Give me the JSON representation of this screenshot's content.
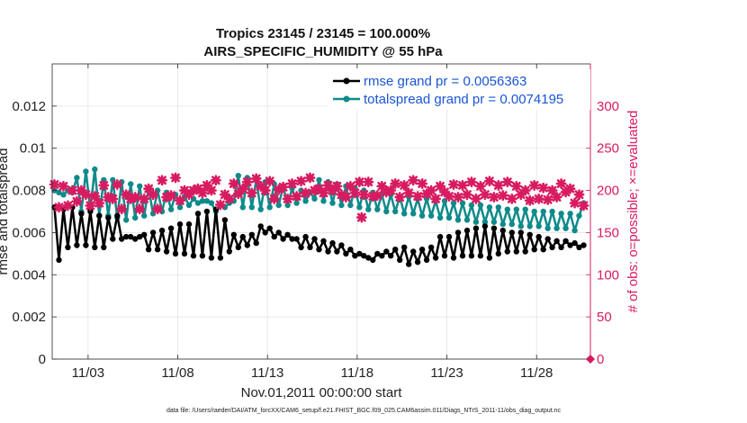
{
  "chart_data": {
    "type": "line",
    "title_line1": "Tropics 23145 / 23145 = 100.000%",
    "title_line2": "AIRS_SPECIFIC_HUMIDITY @ 55 hPa",
    "xlabel": "Nov.01,2011 00:00:00 start",
    "ylabel_left": "rmse and totalspread",
    "ylabel_right": "# of obs: o=possible; ×=evaluated",
    "footnote": "data file: /Users/raeder/DAI/ATM_forcXX/CAM6_setup/f.e21.FHIST_BGC.f09_025.CAM6assim.011/Diags_NTrS_2011-11/obs_diag_output.nc",
    "x_ticks": [
      {
        "value": 3,
        "label": "11/03"
      },
      {
        "value": 8,
        "label": "11/08"
      },
      {
        "value": 13,
        "label": "11/13"
      },
      {
        "value": 18,
        "label": "11/18"
      },
      {
        "value": 23,
        "label": "11/23"
      },
      {
        "value": 28,
        "label": "11/28"
      }
    ],
    "xlim": [
      1,
      31
    ],
    "ylim_left": [
      0,
      0.014
    ],
    "yticks_left": [
      {
        "value": 0,
        "label": "0"
      },
      {
        "value": 0.002,
        "label": "0.002"
      },
      {
        "value": 0.004,
        "label": "0.004"
      },
      {
        "value": 0.006,
        "label": "0.006"
      },
      {
        "value": 0.008,
        "label": "0.008"
      },
      {
        "value": 0.01,
        "label": "0.01"
      },
      {
        "value": 0.012,
        "label": "0.012"
      }
    ],
    "ylim_right": [
      0,
      350
    ],
    "yticks_right": [
      {
        "value": 0,
        "label": "0"
      },
      {
        "value": 50,
        "label": "50"
      },
      {
        "value": 100,
        "label": "100"
      },
      {
        "value": 150,
        "label": "150"
      },
      {
        "value": 200,
        "label": "200"
      },
      {
        "value": 250,
        "label": "250"
      },
      {
        "value": 300,
        "label": "300"
      }
    ],
    "series": [
      {
        "name": "rmse",
        "legend": "rmse grand pr = 0.0056363",
        "color": "#000000",
        "axis": "left",
        "x_start": 1.125,
        "x_step": 0.25,
        "values": [
          0.0072,
          0.0047,
          0.0071,
          0.0053,
          0.0072,
          0.0054,
          0.0069,
          0.0054,
          0.007,
          0.0053,
          0.0068,
          0.0053,
          0.0067,
          0.0057,
          0.0068,
          0.0057,
          0.0058,
          0.0058,
          0.0057,
          0.0058,
          0.0059,
          0.0052,
          0.006,
          0.0052,
          0.0061,
          0.0051,
          0.0062,
          0.005,
          0.0064,
          0.005,
          0.0064,
          0.0049,
          0.0069,
          0.0049,
          0.007,
          0.0048,
          0.0071,
          0.0048,
          0.0066,
          0.0051,
          0.0059,
          0.0053,
          0.0058,
          0.0054,
          0.0059,
          0.0055,
          0.0063,
          0.006,
          0.0062,
          0.0058,
          0.006,
          0.0057,
          0.0059,
          0.0057,
          0.0057,
          0.0053,
          0.0058,
          0.0053,
          0.0057,
          0.0052,
          0.0056,
          0.0051,
          0.0055,
          0.0051,
          0.0054,
          0.005,
          0.0052,
          0.0049,
          0.005,
          0.0049,
          0.0048,
          0.0047,
          0.005,
          0.0049,
          0.0051,
          0.0049,
          0.0052,
          0.0047,
          0.0053,
          0.0045,
          0.0051,
          0.0046,
          0.0052,
          0.0047,
          0.0053,
          0.0048,
          0.0058,
          0.0049,
          0.0058,
          0.0048,
          0.006,
          0.0049,
          0.0061,
          0.0049,
          0.0062,
          0.0049,
          0.0063,
          0.0048,
          0.0062,
          0.005,
          0.0061,
          0.0051,
          0.006,
          0.0051,
          0.006,
          0.0051,
          0.0059,
          0.0052,
          0.0058,
          0.0052,
          0.0057,
          0.0053,
          0.0056,
          0.0053,
          0.0056,
          0.0054,
          0.0055,
          0.0053,
          0.0054
        ]
      },
      {
        "name": "totalspread",
        "legend": "totalspread grand pr = 0.0074195",
        "color": "#0f8a8a",
        "axis": "left",
        "x_start": 1.125,
        "x_step": 0.25,
        "values": [
          0.008,
          0.0079,
          0.0078,
          0.008,
          0.0079,
          0.0086,
          0.007,
          0.0089,
          0.0071,
          0.009,
          0.0068,
          0.0085,
          0.0068,
          0.0085,
          0.0067,
          0.0084,
          0.0066,
          0.0083,
          0.0067,
          0.0082,
          0.0068,
          0.0081,
          0.0069,
          0.008,
          0.007,
          0.0079,
          0.0071,
          0.0078,
          0.0072,
          0.0077,
          0.0073,
          0.0076,
          0.0074,
          0.0075,
          0.0075,
          0.0074,
          0.007,
          0.0073,
          0.0072,
          0.0074,
          0.0075,
          0.0087,
          0.0072,
          0.0086,
          0.0072,
          0.0085,
          0.0071,
          0.0084,
          0.0072,
          0.0083,
          0.0073,
          0.0082,
          0.0073,
          0.0081,
          0.0074,
          0.008,
          0.0075,
          0.0079,
          0.0076,
          0.0085,
          0.0075,
          0.0084,
          0.0074,
          0.0083,
          0.0073,
          0.0082,
          0.0073,
          0.0081,
          0.0072,
          0.008,
          0.0071,
          0.0079,
          0.0071,
          0.0078,
          0.007,
          0.0078,
          0.007,
          0.0077,
          0.0069,
          0.0077,
          0.0069,
          0.0076,
          0.0068,
          0.0076,
          0.0068,
          0.0075,
          0.0067,
          0.0075,
          0.0067,
          0.0074,
          0.0066,
          0.0074,
          0.0066,
          0.0073,
          0.0065,
          0.0073,
          0.0065,
          0.0072,
          0.0065,
          0.0072,
          0.0064,
          0.0071,
          0.0064,
          0.0071,
          0.0063,
          0.0071,
          0.0063,
          0.007,
          0.0063,
          0.007,
          0.0062,
          0.007,
          0.0062,
          0.0069,
          0.0062,
          0.0069,
          0.0061,
          0.0068,
          0.0074
        ]
      },
      {
        "name": "obs possible",
        "color": "#d81b60",
        "axis": "right",
        "marker": "circle",
        "x": [
          31
        ],
        "values": [
          0
        ]
      },
      {
        "name": "obs evaluated",
        "color": "#d81b60",
        "axis": "right",
        "marker": "x",
        "x": [
          1.125,
          1.375,
          1.625,
          1.875,
          2.125,
          2.375,
          2.625,
          2.875,
          3.125,
          3.375,
          3.625,
          3.875,
          4.125,
          4.375,
          4.625,
          4.875,
          5.125,
          5.375,
          5.625,
          5.875,
          6.125,
          6.375,
          6.625,
          6.875,
          7.125,
          7.375,
          7.625,
          7.875,
          8.125,
          8.375,
          8.625,
          8.875,
          9.125,
          9.375,
          9.625,
          9.875,
          10.125,
          10.375,
          10.625,
          10.875,
          11.125,
          11.375,
          11.625,
          11.875,
          12.125,
          12.375,
          12.625,
          12.875,
          13.125,
          13.375,
          13.625,
          13.875,
          14.125,
          14.375,
          14.625,
          14.875,
          15.125,
          15.375,
          15.625,
          15.875,
          16.125,
          16.375,
          16.625,
          16.875,
          17.125,
          17.375,
          17.625,
          17.875,
          18.125,
          18.375,
          18.625,
          18.875,
          19.125,
          19.375,
          19.625,
          19.875,
          20.125,
          20.375,
          20.625,
          20.875,
          21.125,
          21.375,
          21.625,
          21.875,
          22.125,
          22.375,
          22.625,
          22.875,
          23.125,
          23.375,
          23.625,
          23.875,
          24.125,
          24.375,
          24.625,
          24.875,
          25.125,
          25.375,
          25.625,
          25.875,
          26.125,
          26.375,
          26.625,
          26.875,
          27.125,
          27.375,
          27.625,
          27.875,
          28.125,
          28.375,
          28.625,
          28.875,
          29.125,
          29.375,
          29.625,
          29.875,
          30.125,
          30.375,
          30.625
        ],
        "values": [
          207,
          180,
          205,
          182,
          200,
          187,
          200,
          195,
          182,
          193,
          185,
          206,
          192,
          190,
          207,
          178,
          195,
          190,
          192,
          178,
          190,
          202,
          195,
          178,
          212,
          192,
          194,
          215,
          188,
          200,
          195,
          200,
          202,
          197,
          206,
          200,
          212,
          183,
          195,
          190,
          208,
          196,
          202,
          210,
          197,
          214,
          205,
          200,
          211,
          190,
          201,
          204,
          190,
          208,
          193,
          211,
          197,
          215,
          200,
          202,
          197,
          206,
          200,
          205,
          195,
          192,
          205,
          197,
          210,
          195,
          210,
          193,
          194,
          205,
          198,
          200,
          208,
          192,
          206,
          197,
          212,
          193,
          208,
          196,
          200,
          190,
          205,
          198,
          193,
          207,
          192,
          206,
          195,
          210,
          190,
          205,
          195,
          211,
          192,
          206,
          194,
          210,
          190,
          205,
          195,
          200,
          188,
          206,
          190,
          203,
          189,
          200,
          192,
          208,
          198,
          202,
          185,
          195,
          182
        ]
      }
    ],
    "extra_points": [
      {
        "series": "obs evaluated",
        "x": 18.25,
        "value": 168
      }
    ]
  }
}
